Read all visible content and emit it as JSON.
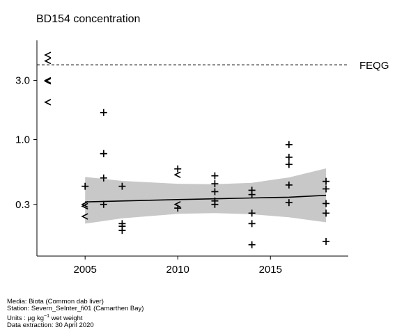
{
  "chart_data": {
    "type": "scatter",
    "title": "BD154 concentration",
    "xlabel": "",
    "ylabel": "",
    "y_scale": "log",
    "xlim": [
      2002.4,
      2019.2
    ],
    "ylim": [
      0.115,
      6.3
    ],
    "x_ticks": [
      2005,
      2010,
      2015
    ],
    "y_ticks": [
      0.3,
      1.0,
      3.0
    ],
    "y_tick_labels": [
      "0.3",
      "1.0",
      "3.0"
    ],
    "grid": false,
    "reference_line": {
      "label": "FEQG",
      "y": 4.0,
      "style": "dashed"
    },
    "points": [
      {
        "x": 2003,
        "y": 4.8,
        "marker": "<"
      },
      {
        "x": 2003,
        "y": 4.3,
        "marker": "<"
      },
      {
        "x": 2003,
        "y": 3.0,
        "marker": "<"
      },
      {
        "x": 2003,
        "y": 2.95,
        "marker": "<"
      },
      {
        "x": 2003,
        "y": 2.0,
        "marker": "<"
      },
      {
        "x": 2005,
        "y": 0.42,
        "marker": "+"
      },
      {
        "x": 2005,
        "y": 0.3,
        "marker": "<"
      },
      {
        "x": 2005,
        "y": 0.29,
        "marker": "<"
      },
      {
        "x": 2005,
        "y": 0.24,
        "marker": "<"
      },
      {
        "x": 2006,
        "y": 1.65,
        "marker": "+"
      },
      {
        "x": 2006,
        "y": 0.77,
        "marker": "+"
      },
      {
        "x": 2006,
        "y": 0.77,
        "marker": "+"
      },
      {
        "x": 2006,
        "y": 0.49,
        "marker": "+"
      },
      {
        "x": 2006,
        "y": 0.3,
        "marker": "+"
      },
      {
        "x": 2007,
        "y": 0.42,
        "marker": "+"
      },
      {
        "x": 2007,
        "y": 0.21,
        "marker": "+"
      },
      {
        "x": 2007,
        "y": 0.2,
        "marker": "+"
      },
      {
        "x": 2007,
        "y": 0.185,
        "marker": "+"
      },
      {
        "x": 2010,
        "y": 0.58,
        "marker": "+"
      },
      {
        "x": 2010,
        "y": 0.52,
        "marker": "<"
      },
      {
        "x": 2010,
        "y": 0.3,
        "marker": "<"
      },
      {
        "x": 2010,
        "y": 0.28,
        "marker": "+"
      },
      {
        "x": 2012,
        "y": 0.51,
        "marker": "+"
      },
      {
        "x": 2012,
        "y": 0.44,
        "marker": "+"
      },
      {
        "x": 2012,
        "y": 0.38,
        "marker": "+"
      },
      {
        "x": 2012,
        "y": 0.32,
        "marker": "+"
      },
      {
        "x": 2012,
        "y": 0.3,
        "marker": "+"
      },
      {
        "x": 2014,
        "y": 0.39,
        "marker": "+"
      },
      {
        "x": 2014,
        "y": 0.36,
        "marker": "+"
      },
      {
        "x": 2014,
        "y": 0.255,
        "marker": "+"
      },
      {
        "x": 2014,
        "y": 0.21,
        "marker": "+"
      },
      {
        "x": 2014,
        "y": 0.142,
        "marker": "+"
      },
      {
        "x": 2016,
        "y": 0.91,
        "marker": "+"
      },
      {
        "x": 2016,
        "y": 0.72,
        "marker": "+"
      },
      {
        "x": 2016,
        "y": 0.63,
        "marker": "+"
      },
      {
        "x": 2016,
        "y": 0.43,
        "marker": "+"
      },
      {
        "x": 2016,
        "y": 0.31,
        "marker": "+"
      },
      {
        "x": 2018,
        "y": 0.46,
        "marker": "+"
      },
      {
        "x": 2018,
        "y": 0.4,
        "marker": "+"
      },
      {
        "x": 2018,
        "y": 0.305,
        "marker": "+"
      },
      {
        "x": 2018,
        "y": 0.255,
        "marker": "+"
      },
      {
        "x": 2018,
        "y": 0.151,
        "marker": "+"
      }
    ],
    "trend": {
      "x": [
        2005,
        2007,
        2010,
        2012,
        2014,
        2016,
        2018
      ],
      "fit": [
        0.314,
        0.32,
        0.328,
        0.333,
        0.338,
        0.343,
        0.355
      ],
      "lower": [
        0.21,
        0.232,
        0.252,
        0.255,
        0.25,
        0.236,
        0.215
      ],
      "upper": [
        0.5,
        0.464,
        0.44,
        0.436,
        0.448,
        0.495,
        0.585
      ]
    },
    "colors": {
      "band": "#c8c8c8",
      "line": "#000000",
      "marker": "#000000",
      "axis": "#000000"
    }
  },
  "footer": {
    "media": "Media: Biota (Common dab liver)",
    "station": "Station: Severn_SeInter_fi01 (Camarthen Bay)",
    "units_prefix": "Units : μg kg",
    "units_exponent": "−1",
    "units_suffix": " wet weight",
    "extraction": "Data extraction: 30 April 2020"
  }
}
